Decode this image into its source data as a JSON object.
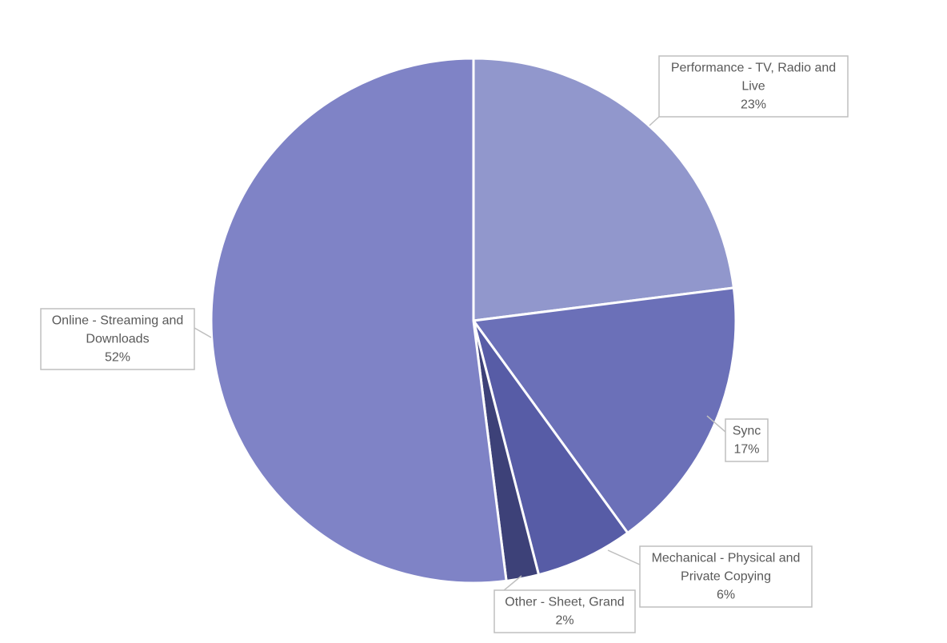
{
  "chart_data": {
    "type": "pie",
    "title": "",
    "start_angle_deg": 0,
    "direction": "clockwise",
    "slices": [
      {
        "name_lines": [
          "Performance - TV, Radio and",
          "Live"
        ],
        "value": 23,
        "label": "23%",
        "color": "#9197cc"
      },
      {
        "name_lines": [
          "Sync"
        ],
        "value": 17,
        "label": "17%",
        "color": "#6b70b8"
      },
      {
        "name_lines": [
          "Mechanical - Physical and",
          "Private Copying"
        ],
        "value": 6,
        "label": "6%",
        "color": "#575ca6"
      },
      {
        "name_lines": [
          "Other - Sheet, Grand"
        ],
        "value": 2,
        "label": "2%",
        "color": "#3d4178"
      },
      {
        "name_lines": [
          "Online - Streaming and",
          "Downloads"
        ],
        "value": 52,
        "label": "52%",
        "color": "#7f83c6"
      }
    ],
    "label_color": "#595959",
    "leader_color": "#bfbfbf"
  }
}
